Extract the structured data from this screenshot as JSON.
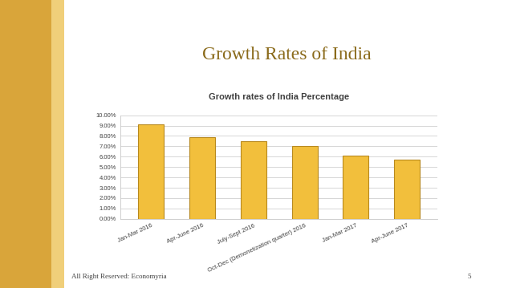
{
  "header": {
    "title": "Growth Rates of India"
  },
  "chart_data": {
    "type": "bar",
    "title": "Growth rates of India Percentage",
    "categories": [
      "Jan-Mar 2016",
      "Apr-June 2016",
      "July-Sept 2016",
      "Oct-Dec (Demonetization quarter) 2016",
      "Jan-Mar 2017",
      "Apr-June 2017"
    ],
    "values": [
      9.1,
      7.9,
      7.5,
      7.0,
      6.1,
      5.7
    ],
    "color": "#f2bf3c",
    "ylim": [
      0,
      10
    ],
    "yticks": [
      {
        "value": 0,
        "label": "0.00%"
      },
      {
        "value": 1,
        "label": "1.00%"
      },
      {
        "value": 2,
        "label": "2.00%"
      },
      {
        "value": 3,
        "label": "3.00%"
      },
      {
        "value": 4,
        "label": "4.00%"
      },
      {
        "value": 5,
        "label": "5.00%"
      },
      {
        "value": 6,
        "label": "6.00%"
      },
      {
        "value": 7,
        "label": "7.00%"
      },
      {
        "value": 8,
        "label": "8.00%"
      },
      {
        "value": 9,
        "label": "9.00%"
      },
      {
        "value": 10,
        "label": "10.00%"
      }
    ],
    "grid": true
  },
  "footer": {
    "text": "All Right Reserved: Economyria",
    "page": "5"
  }
}
